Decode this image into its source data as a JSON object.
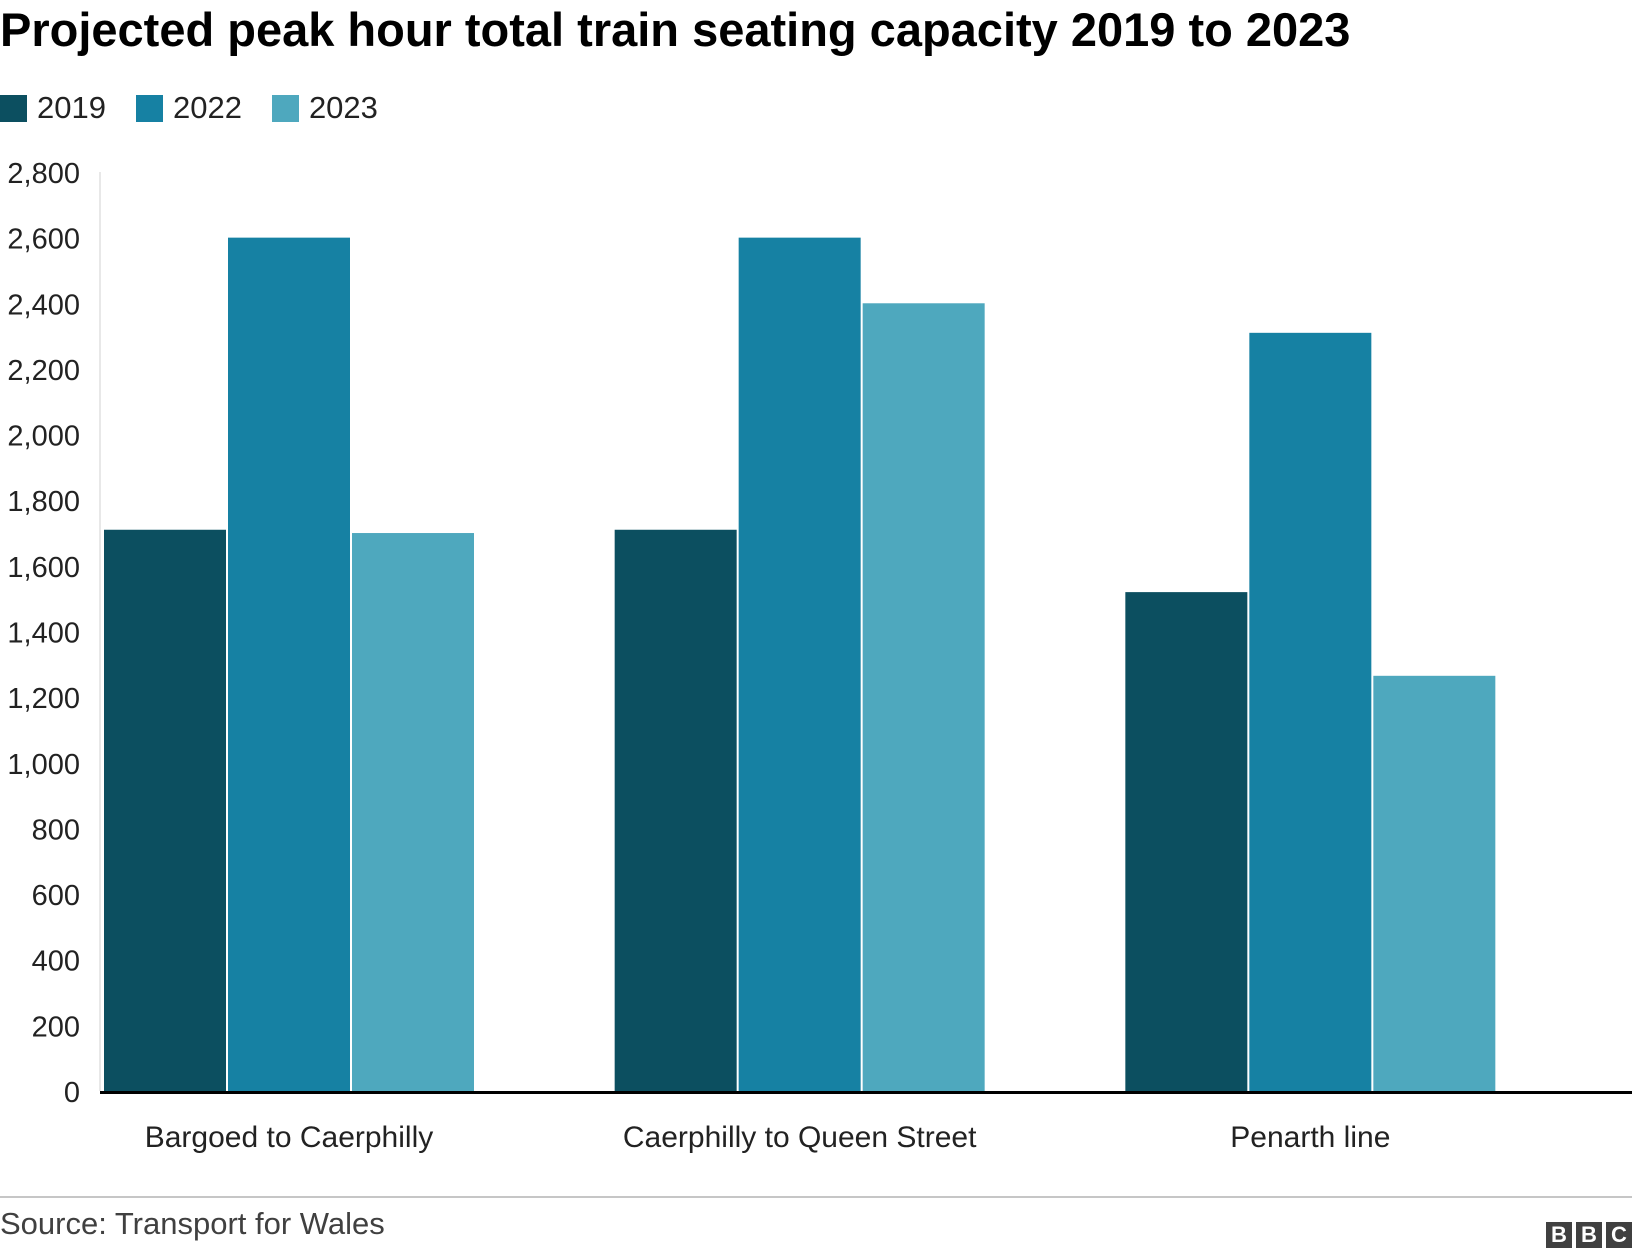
{
  "chart_data": {
    "type": "bar",
    "title": "Projected peak hour total train seating capacity 2019 to 2023",
    "categories": [
      "Bargoed to Caerphilly",
      "Caerphilly to Queen Street",
      "Penarth line"
    ],
    "series": [
      {
        "name": "2019",
        "color": "#0c4f60",
        "values": [
          1710,
          1710,
          1520
        ]
      },
      {
        "name": "2022",
        "color": "#1681a3",
        "values": [
          2600,
          2600,
          2310
        ]
      },
      {
        "name": "2023",
        "color": "#4ea8be",
        "values": [
          1700,
          2400,
          1265
        ]
      }
    ],
    "ylim": [
      0,
      2800
    ],
    "yticks": [
      0,
      200,
      400,
      600,
      800,
      1000,
      1200,
      1400,
      1600,
      1800,
      2000,
      2200,
      2400,
      2600,
      2800
    ],
    "ytick_labels": [
      "0",
      "200",
      "400",
      "600",
      "800",
      "1,000",
      "1,200",
      "1,400",
      "1,600",
      "1,800",
      "2,000",
      "2,200",
      "2,400",
      "2,600",
      "2,800"
    ],
    "xlabel": "",
    "ylabel": "",
    "legend": "top-left",
    "grid": false
  },
  "footer": {
    "source": "Source: Transport for Wales",
    "logo_letters": [
      "B",
      "B",
      "C"
    ]
  }
}
